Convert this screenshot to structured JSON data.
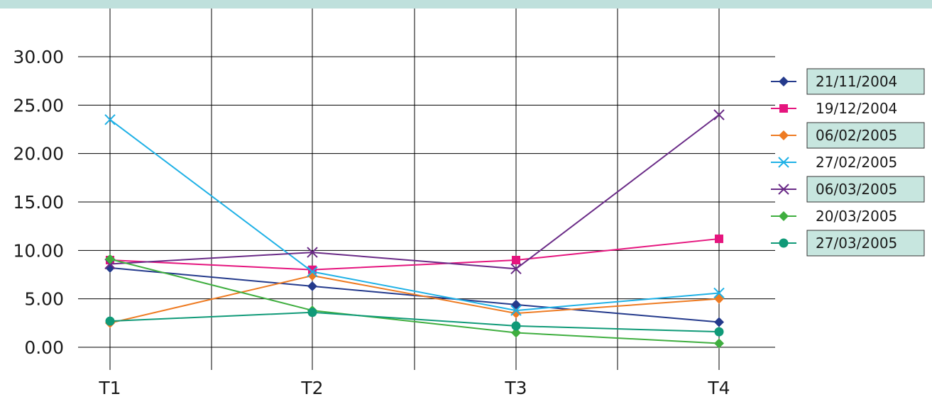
{
  "chart_data": {
    "type": "line",
    "categories": [
      "T1",
      "T2",
      "T3",
      "T4"
    ],
    "ylim": [
      0,
      30
    ],
    "ytick_labels": [
      "0.00",
      "5.00",
      "10.00",
      "15.00",
      "20.00",
      "25.00",
      "30.00"
    ],
    "grid": true,
    "legend_position": "right",
    "series": [
      {
        "name": "21/11/2004",
        "color": "#243a8c",
        "marker": "diamond",
        "values": [
          8.2,
          6.3,
          4.4,
          2.6
        ]
      },
      {
        "name": "19/12/2004",
        "color": "#e5157e",
        "marker": "square",
        "values": [
          9.0,
          8.0,
          9.0,
          11.2
        ]
      },
      {
        "name": "06/02/2005",
        "color": "#ee7b22",
        "marker": "diamond",
        "values": [
          2.5,
          7.4,
          3.5,
          5.0
        ]
      },
      {
        "name": "27/02/2005",
        "color": "#1fb1e6",
        "marker": "x",
        "values": [
          23.5,
          7.8,
          3.8,
          5.6
        ]
      },
      {
        "name": "06/03/2005",
        "color": "#6a2b87",
        "marker": "x",
        "values": [
          8.6,
          9.8,
          8.1,
          24.0
        ]
      },
      {
        "name": "20/03/2005",
        "color": "#3fae3f",
        "marker": "diamond",
        "values": [
          9.1,
          3.8,
          1.5,
          0.4
        ]
      },
      {
        "name": "27/03/2005",
        "color": "#109a78",
        "marker": "circle",
        "values": [
          2.7,
          3.6,
          2.2,
          1.6
        ]
      }
    ]
  }
}
